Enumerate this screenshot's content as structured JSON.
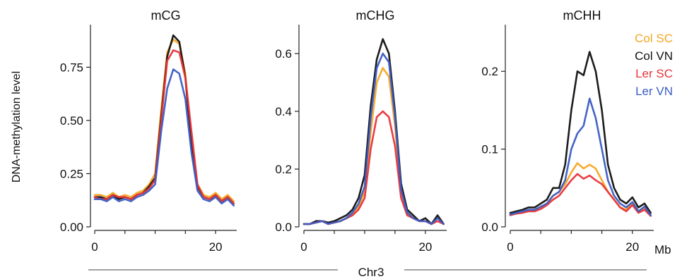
{
  "figure": {
    "ylabel": "DNA-methylation level",
    "xlabel": "Chr3",
    "x_unit": "Mb",
    "legend_placement": "right of third panel, top"
  },
  "series_styles": [
    {
      "name": "Col SC",
      "color": "#f5a623"
    },
    {
      "name": "Col VN",
      "color": "#111111"
    },
    {
      "name": "Ler SC",
      "color": "#e8343a"
    },
    {
      "name": "Ler VN",
      "color": "#3b5cc4"
    }
  ],
  "chart_data": [
    {
      "type": "line",
      "title": "mCG",
      "ylabel": "DNA-methylation level",
      "xlabel": "",
      "xlim": [
        0,
        23.5
      ],
      "ylim": [
        0,
        0.95
      ],
      "yticks": [
        "0.00",
        "0.25",
        "0.50",
        "0.75"
      ],
      "ytick_values": [
        0,
        0.25,
        0.5,
        0.75
      ],
      "xticks": [
        "0",
        "20"
      ],
      "xtick_values": [
        0,
        20
      ],
      "x": [
        0,
        1,
        2,
        3,
        4,
        5,
        6,
        7,
        8,
        9,
        10,
        11,
        12,
        13,
        14,
        15,
        16,
        17,
        18,
        19,
        20,
        21,
        22,
        23
      ],
      "series": [
        {
          "name": "Col SC",
          "values": [
            0.15,
            0.15,
            0.14,
            0.16,
            0.14,
            0.15,
            0.14,
            0.16,
            0.17,
            0.2,
            0.25,
            0.55,
            0.82,
            0.88,
            0.86,
            0.72,
            0.4,
            0.2,
            0.15,
            0.14,
            0.16,
            0.13,
            0.15,
            0.12
          ]
        },
        {
          "name": "Col VN",
          "values": [
            0.14,
            0.14,
            0.13,
            0.15,
            0.13,
            0.14,
            0.13,
            0.15,
            0.16,
            0.19,
            0.23,
            0.52,
            0.8,
            0.9,
            0.87,
            0.7,
            0.38,
            0.19,
            0.14,
            0.13,
            0.15,
            0.12,
            0.14,
            0.11
          ]
        },
        {
          "name": "Ler SC",
          "values": [
            0.14,
            0.13,
            0.13,
            0.15,
            0.14,
            0.14,
            0.13,
            0.15,
            0.16,
            0.18,
            0.22,
            0.5,
            0.78,
            0.83,
            0.82,
            0.7,
            0.45,
            0.2,
            0.14,
            0.13,
            0.15,
            0.12,
            0.14,
            0.11
          ]
        },
        {
          "name": "Ler VN",
          "values": [
            0.13,
            0.13,
            0.12,
            0.14,
            0.12,
            0.13,
            0.12,
            0.14,
            0.15,
            0.17,
            0.2,
            0.45,
            0.65,
            0.74,
            0.72,
            0.6,
            0.35,
            0.17,
            0.13,
            0.12,
            0.14,
            0.11,
            0.13,
            0.1
          ]
        }
      ]
    },
    {
      "type": "line",
      "title": "mCHG",
      "xlabel": "",
      "ylabel": "",
      "xlim": [
        0,
        23.5
      ],
      "ylim": [
        0,
        0.7
      ],
      "yticks": [
        "0.0",
        "0.2",
        "0.4",
        "0.6"
      ],
      "ytick_values": [
        0,
        0.2,
        0.4,
        0.6
      ],
      "xticks": [
        "0",
        "20"
      ],
      "xtick_values": [
        0,
        20
      ],
      "x": [
        0,
        1,
        2,
        3,
        4,
        5,
        6,
        7,
        8,
        9,
        10,
        11,
        12,
        13,
        14,
        15,
        16,
        17,
        18,
        19,
        20,
        21,
        22,
        23
      ],
      "series": [
        {
          "name": "Col SC",
          "values": [
            0.01,
            0.01,
            0.015,
            0.02,
            0.01,
            0.015,
            0.02,
            0.03,
            0.04,
            0.07,
            0.12,
            0.33,
            0.5,
            0.55,
            0.52,
            0.35,
            0.12,
            0.05,
            0.03,
            0.02,
            0.02,
            0.01,
            0.03,
            0.01
          ]
        },
        {
          "name": "Col VN",
          "values": [
            0.01,
            0.01,
            0.02,
            0.02,
            0.015,
            0.02,
            0.03,
            0.04,
            0.06,
            0.1,
            0.18,
            0.42,
            0.58,
            0.65,
            0.6,
            0.4,
            0.15,
            0.06,
            0.04,
            0.02,
            0.03,
            0.01,
            0.04,
            0.01
          ]
        },
        {
          "name": "Ler SC",
          "values": [
            0.01,
            0.01,
            0.015,
            0.02,
            0.01,
            0.015,
            0.02,
            0.03,
            0.04,
            0.06,
            0.1,
            0.27,
            0.38,
            0.4,
            0.38,
            0.28,
            0.1,
            0.04,
            0.03,
            0.02,
            0.02,
            0.01,
            0.02,
            0.01
          ]
        },
        {
          "name": "Ler VN",
          "values": [
            0.01,
            0.01,
            0.015,
            0.02,
            0.01,
            0.015,
            0.02,
            0.03,
            0.05,
            0.08,
            0.14,
            0.38,
            0.55,
            0.6,
            0.57,
            0.38,
            0.13,
            0.05,
            0.03,
            0.02,
            0.02,
            0.01,
            0.03,
            0.01
          ]
        }
      ]
    },
    {
      "type": "line",
      "title": "mCHH",
      "xlabel": "",
      "ylabel": "",
      "xlim": [
        0,
        23.5
      ],
      "ylim": [
        0,
        0.26
      ],
      "yticks": [
        "0.0",
        "0.1",
        "0.2"
      ],
      "ytick_values": [
        0,
        0.1,
        0.2
      ],
      "xticks": [
        "0",
        "20"
      ],
      "xtick_values": [
        0,
        20
      ],
      "x": [
        0,
        1,
        2,
        3,
        4,
        5,
        6,
        7,
        8,
        9,
        10,
        11,
        12,
        13,
        14,
        15,
        16,
        17,
        18,
        19,
        20,
        21,
        22,
        23
      ],
      "series": [
        {
          "name": "Col SC",
          "values": [
            0.015,
            0.018,
            0.02,
            0.02,
            0.022,
            0.025,
            0.03,
            0.04,
            0.045,
            0.055,
            0.07,
            0.082,
            0.075,
            0.08,
            0.075,
            0.06,
            0.045,
            0.035,
            0.025,
            0.022,
            0.03,
            0.02,
            0.025,
            0.015
          ]
        },
        {
          "name": "Col VN",
          "values": [
            0.018,
            0.02,
            0.022,
            0.025,
            0.025,
            0.03,
            0.035,
            0.05,
            0.05,
            0.08,
            0.15,
            0.2,
            0.195,
            0.225,
            0.2,
            0.15,
            0.08,
            0.05,
            0.035,
            0.03,
            0.038,
            0.025,
            0.03,
            0.018
          ]
        },
        {
          "name": "Ler SC",
          "values": [
            0.015,
            0.017,
            0.018,
            0.02,
            0.02,
            0.023,
            0.028,
            0.035,
            0.04,
            0.05,
            0.06,
            0.068,
            0.062,
            0.066,
            0.06,
            0.055,
            0.045,
            0.035,
            0.025,
            0.02,
            0.028,
            0.018,
            0.022,
            0.014
          ]
        },
        {
          "name": "Ler VN",
          "values": [
            0.016,
            0.018,
            0.02,
            0.022,
            0.022,
            0.026,
            0.03,
            0.04,
            0.045,
            0.06,
            0.1,
            0.12,
            0.13,
            0.165,
            0.14,
            0.1,
            0.06,
            0.04,
            0.03,
            0.025,
            0.032,
            0.02,
            0.026,
            0.015
          ]
        }
      ]
    }
  ]
}
